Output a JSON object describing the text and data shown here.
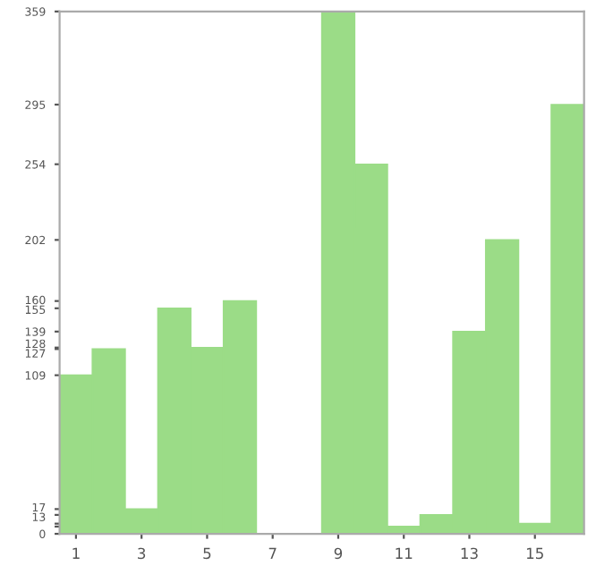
{
  "chart_data": {
    "type": "bar",
    "categories": [
      "1",
      null,
      "3",
      null,
      "5",
      null,
      "7",
      null,
      "9",
      null,
      "11",
      null,
      "13",
      null,
      "15",
      null
    ],
    "values": [
      109,
      127,
      17,
      155,
      128,
      160,
      0,
      0,
      359,
      254,
      5,
      13,
      139,
      202,
      7,
      295
    ],
    "color": "#9bdc87",
    "ylim": [
      0,
      359
    ],
    "yticks": [
      0,
      {
        "value": 5,
        "label": null
      },
      {
        "value": 7,
        "label": null
      },
      13,
      17,
      109,
      127,
      128,
      139,
      155,
      160,
      202,
      254,
      295,
      359
    ],
    "grid": false,
    "legend": false
  }
}
